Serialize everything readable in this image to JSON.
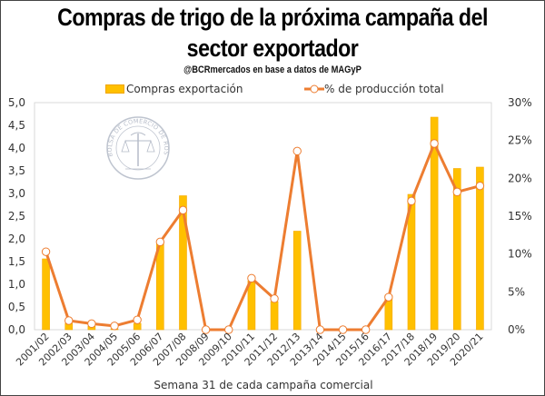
{
  "chart_data": {
    "type": "bar",
    "title": "Compras de trigo de la próxima campaña del sector exportador",
    "title_lines": [
      "Compras de trigo de la próxima campaña del",
      "sector exportador"
    ],
    "subtitle": "@BCRmercados en base a datos de MAGyP",
    "xlabel": "Semana 31 de cada campaña comercial",
    "ylabel": "",
    "ylabel_right": "",
    "categories": [
      "2001/02",
      "2002/03",
      "2003/04",
      "2004/05",
      "2005/06",
      "2006/07",
      "2007/08",
      "2008/09",
      "2009/10",
      "2010/11",
      "2011/12",
      "2012/13",
      "2013/14",
      "2014/15",
      "2015/16",
      "2016/17",
      "2017/18",
      "2018/19",
      "2019/20",
      "2020/21"
    ],
    "series": [
      {
        "name": "Compras exportación",
        "type": "bar",
        "axis": "left",
        "color": "#FFC000",
        "values": [
          1.56,
          0.14,
          0.08,
          0.02,
          0.14,
          1.92,
          2.95,
          0.0,
          0.0,
          1.08,
          0.62,
          2.17,
          0.0,
          0.0,
          0.0,
          0.76,
          2.98,
          4.68,
          3.55,
          3.58
        ]
      },
      {
        "name": "% de producción total",
        "type": "line",
        "axis": "right",
        "color": "#ED7D31",
        "values": [
          10.3,
          1.2,
          0.8,
          0.5,
          1.3,
          11.6,
          15.8,
          0.0,
          0.0,
          6.8,
          4.1,
          23.6,
          0.0,
          0.0,
          0.0,
          4.3,
          17.0,
          24.6,
          18.2,
          19.0
        ]
      }
    ],
    "ylim": [
      0,
      5
    ],
    "yticks": [
      "0,0",
      "0,5",
      "1,0",
      "1,5",
      "2,0",
      "2,5",
      "3,0",
      "3,5",
      "4,0",
      "4,5",
      "5,0"
    ],
    "ylim_right": [
      0,
      30
    ],
    "yticks_right": [
      "0%",
      "5%",
      "10%",
      "15%",
      "20%",
      "25%",
      "30%"
    ],
    "grid": false,
    "legend_position": "top",
    "watermark": "BOLSA DE COMERCIO DE ROSARIO"
  }
}
